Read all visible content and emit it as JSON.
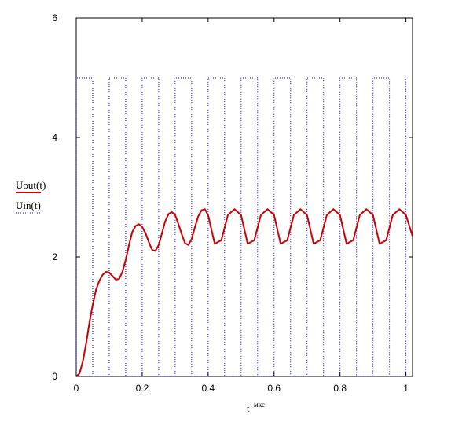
{
  "chart_data": {
    "type": "line",
    "xlabel": "t",
    "xlabel_unit": "мкс",
    "xlim": [
      0,
      1.02
    ],
    "ylim": [
      0,
      6
    ],
    "x_ticks": [
      0,
      0.2,
      0.4,
      0.6,
      0.8,
      1
    ],
    "x_tick_labels": [
      "0",
      "0.2",
      "0.4",
      "0.6",
      "0.8",
      "1"
    ],
    "y_ticks": [
      0,
      2,
      4,
      6
    ],
    "y_tick_labels": [
      "0",
      "2",
      "4",
      "6"
    ],
    "grid": false,
    "legend_position": "left",
    "series": [
      {
        "name": "Uout(t)",
        "color": "#cc0000",
        "style": "solid",
        "x": [
          0,
          0.01,
          0.02,
          0.03,
          0.04,
          0.05,
          0.06,
          0.07,
          0.08,
          0.09,
          0.1,
          0.11,
          0.12,
          0.13,
          0.14,
          0.15,
          0.16,
          0.17,
          0.18,
          0.19,
          0.2,
          0.21,
          0.22,
          0.23,
          0.24,
          0.25,
          0.26,
          0.27,
          0.28,
          0.29,
          0.3,
          0.31,
          0.32,
          0.33,
          0.34,
          0.35,
          0.36,
          0.37,
          0.38,
          0.39,
          0.4,
          0.42,
          0.44,
          0.46,
          0.48,
          0.5,
          0.52,
          0.54,
          0.56,
          0.58,
          0.6,
          0.62,
          0.64,
          0.66,
          0.68,
          0.7,
          0.72,
          0.74,
          0.76,
          0.78,
          0.8,
          0.82,
          0.84,
          0.86,
          0.88,
          0.9,
          0.92,
          0.94,
          0.96,
          0.98,
          1.0,
          1.02
        ],
        "values": [
          0,
          0.05,
          0.25,
          0.55,
          0.9,
          1.2,
          1.45,
          1.6,
          1.7,
          1.75,
          1.74,
          1.68,
          1.62,
          1.63,
          1.75,
          1.95,
          2.2,
          2.42,
          2.52,
          2.55,
          2.5,
          2.4,
          2.25,
          2.12,
          2.1,
          2.2,
          2.4,
          2.6,
          2.72,
          2.75,
          2.7,
          2.55,
          2.38,
          2.23,
          2.2,
          2.3,
          2.5,
          2.68,
          2.78,
          2.8,
          2.7,
          2.22,
          2.28,
          2.7,
          2.8,
          2.7,
          2.22,
          2.28,
          2.7,
          2.8,
          2.7,
          2.22,
          2.28,
          2.7,
          2.8,
          2.7,
          2.22,
          2.28,
          2.7,
          2.8,
          2.7,
          2.22,
          2.28,
          2.7,
          2.8,
          2.7,
          2.22,
          2.28,
          2.7,
          2.8,
          2.7,
          2.35
        ]
      },
      {
        "name": "Uin(t)",
        "color": "#0000cc",
        "style": "dotted",
        "x": [
          0,
          0,
          0.05,
          0.05,
          0.1,
          0.1,
          0.15,
          0.15,
          0.2,
          0.2,
          0.25,
          0.25,
          0.3,
          0.3,
          0.35,
          0.35,
          0.4,
          0.4,
          0.45,
          0.45,
          0.5,
          0.5,
          0.55,
          0.55,
          0.6,
          0.6,
          0.65,
          0.65,
          0.7,
          0.7,
          0.75,
          0.75,
          0.8,
          0.8,
          0.85,
          0.85,
          0.9,
          0.9,
          0.95,
          0.95,
          1.0,
          1.0
        ],
        "values": [
          0,
          5,
          5,
          0,
          0,
          5,
          5,
          0,
          0,
          5,
          5,
          0,
          0,
          5,
          5,
          0,
          0,
          5,
          5,
          0,
          0,
          5,
          5,
          0,
          0,
          5,
          5,
          0,
          0,
          5,
          5,
          0,
          0,
          5,
          5,
          0,
          0,
          5,
          5,
          0,
          0,
          5
        ]
      }
    ]
  }
}
